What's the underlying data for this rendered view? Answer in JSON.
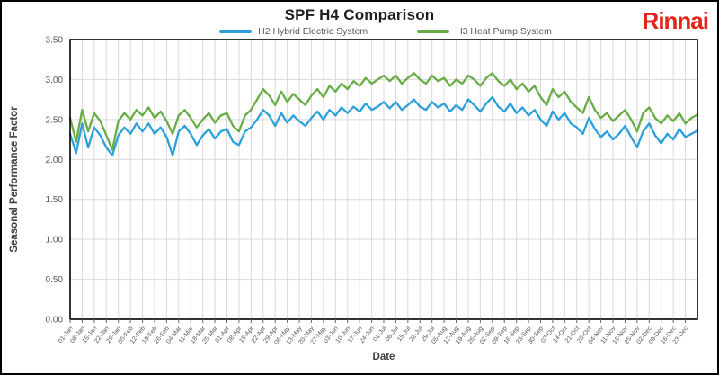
{
  "branding": {
    "logo_text": "Rinnai",
    "logo_color": "#E1251B"
  },
  "chart_data": {
    "type": "line",
    "title": "SPF H4 Comparison",
    "xlabel": "Date",
    "ylabel": "Seasonal Performance Factor",
    "ylim": [
      0,
      3.5
    ],
    "ytick_labels": [
      "0.00",
      "0.50",
      "1.00",
      "1.50",
      "2.00",
      "2.50",
      "3.00",
      "3.50"
    ],
    "grid": true,
    "legend_position": "top",
    "x_resolution": "2 points per weekly category (daily data approximated)",
    "categories": [
      "01-Jan",
      "08-Jan",
      "15-Jan",
      "22-Jan",
      "29-Jan",
      "05-Feb",
      "12-Feb",
      "19-Feb",
      "26-Feb",
      "04-Mar",
      "11-Mar",
      "18-Mar",
      "25-Mar",
      "01-Apr",
      "08-Apr",
      "15-Apr",
      "22-Apr",
      "29-Apr",
      "06-May",
      "13-May",
      "20-May",
      "27-May",
      "03-Jun",
      "10-Jun",
      "17-Jun",
      "24-Jun",
      "01-Jul",
      "08-Jul",
      "15-Jul",
      "22-Jul",
      "29-Jul",
      "05-Aug",
      "12-Aug",
      "19-Aug",
      "26-Aug",
      "02-Sep",
      "09-Sep",
      "16-Sep",
      "23-Sep",
      "30-Sep",
      "07-Oct",
      "14-Oct",
      "21-Oct",
      "28-Oct",
      "04-Nov",
      "11-Nov",
      "18-Nov",
      "25-Nov",
      "02-Dec",
      "09-Dec",
      "16-Dec",
      "23-Dec"
    ],
    "series": [
      {
        "name": "H2 Hybrid Electric System",
        "color": "#2BA0DB",
        "values": [
          2.32,
          2.08,
          2.45,
          2.15,
          2.4,
          2.3,
          2.15,
          2.05,
          2.3,
          2.4,
          2.32,
          2.45,
          2.35,
          2.45,
          2.32,
          2.4,
          2.28,
          2.05,
          2.35,
          2.42,
          2.32,
          2.18,
          2.3,
          2.38,
          2.26,
          2.35,
          2.38,
          2.22,
          2.18,
          2.35,
          2.4,
          2.5,
          2.62,
          2.55,
          2.42,
          2.58,
          2.46,
          2.55,
          2.48,
          2.42,
          2.52,
          2.6,
          2.5,
          2.62,
          2.55,
          2.65,
          2.58,
          2.66,
          2.6,
          2.7,
          2.62,
          2.66,
          2.72,
          2.64,
          2.72,
          2.62,
          2.68,
          2.75,
          2.66,
          2.62,
          2.72,
          2.65,
          2.7,
          2.6,
          2.68,
          2.62,
          2.75,
          2.68,
          2.6,
          2.7,
          2.78,
          2.66,
          2.6,
          2.7,
          2.58,
          2.65,
          2.55,
          2.62,
          2.5,
          2.42,
          2.6,
          2.5,
          2.58,
          2.45,
          2.4,
          2.32,
          2.52,
          2.38,
          2.28,
          2.35,
          2.25,
          2.32,
          2.42,
          2.28,
          2.15,
          2.35,
          2.45,
          2.3,
          2.2,
          2.32,
          2.25,
          2.38,
          2.28,
          2.32,
          2.36
        ]
      },
      {
        "name": "H3 Heat Pump System",
        "color": "#67AC44",
        "values": [
          2.52,
          2.22,
          2.62,
          2.35,
          2.58,
          2.48,
          2.3,
          2.12,
          2.48,
          2.58,
          2.5,
          2.62,
          2.55,
          2.65,
          2.52,
          2.6,
          2.48,
          2.32,
          2.55,
          2.62,
          2.52,
          2.4,
          2.5,
          2.58,
          2.46,
          2.55,
          2.58,
          2.42,
          2.35,
          2.55,
          2.62,
          2.75,
          2.88,
          2.8,
          2.68,
          2.85,
          2.72,
          2.82,
          2.75,
          2.68,
          2.8,
          2.88,
          2.78,
          2.92,
          2.85,
          2.95,
          2.88,
          2.98,
          2.92,
          3.02,
          2.95,
          3.0,
          3.05,
          2.98,
          3.05,
          2.95,
          3.02,
          3.08,
          3.0,
          2.95,
          3.05,
          2.98,
          3.02,
          2.92,
          3.0,
          2.95,
          3.05,
          3.0,
          2.92,
          3.02,
          3.08,
          2.98,
          2.92,
          3.0,
          2.88,
          2.95,
          2.85,
          2.92,
          2.78,
          2.68,
          2.88,
          2.78,
          2.85,
          2.72,
          2.65,
          2.58,
          2.78,
          2.62,
          2.52,
          2.58,
          2.48,
          2.55,
          2.62,
          2.5,
          2.35,
          2.58,
          2.65,
          2.52,
          2.45,
          2.55,
          2.48,
          2.58,
          2.45,
          2.52,
          2.56
        ]
      }
    ],
    "style": {
      "grid_color": "#D9D9D9",
      "axis_text_color": "#595959",
      "axis_title_color": "#3f3f3f",
      "plot_border_color": "#000000"
    }
  }
}
